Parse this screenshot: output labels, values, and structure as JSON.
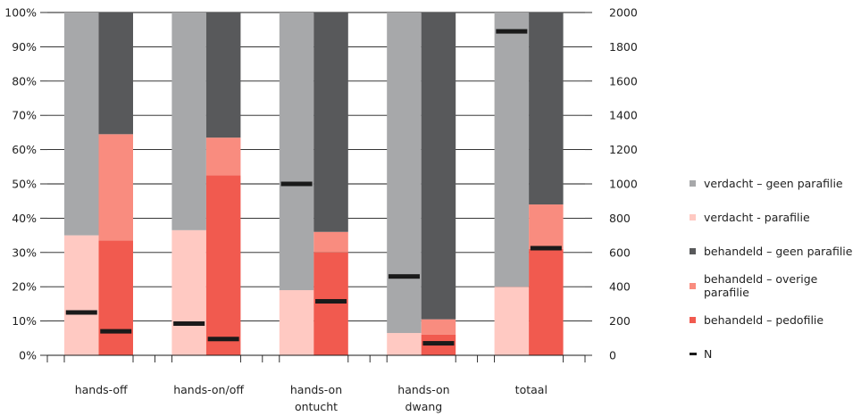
{
  "chart_data": {
    "type": "bar",
    "stacked": true,
    "categories": [
      "hands-off",
      "hands-on/off",
      "hands-on ontucht",
      "hands-on dwang",
      "totaal"
    ],
    "category_labels": [
      [
        "hands-off"
      ],
      [
        "hands-on/off"
      ],
      [
        "hands-on",
        "ontucht"
      ],
      [
        "hands-on",
        "dwang"
      ],
      [
        "totaal"
      ]
    ],
    "groups": [
      {
        "name": "verdacht",
        "segments": [
          {
            "name": "verdacht - parafilie",
            "color": "#ffc9c2",
            "values": [
              35,
              36.5,
              19,
              6.5,
              20
            ]
          },
          {
            "name": "verdacht – geen parafilie",
            "color": "#a7a8aa",
            "values": [
              65,
              63.5,
              81,
              93.5,
              80
            ]
          }
        ]
      },
      {
        "name": "behandeld",
        "segments": [
          {
            "name": "behandeld – pedofilie",
            "color": "#f15a4f",
            "values": [
              33.5,
              52.5,
              30,
              6,
              31
            ]
          },
          {
            "name": "behandeld – overige parafilie",
            "color": "#f98c7f",
            "values": [
              31,
              11,
              6,
              4.5,
              13
            ]
          },
          {
            "name": "behandeld – geen parafilie",
            "color": "#58595b",
            "values": [
              35.5,
              36.5,
              64,
              89.5,
              56
            ]
          }
        ]
      }
    ],
    "n_series": {
      "name": "N",
      "color": "#1a1a1a",
      "verdacht": [
        250,
        185,
        1000,
        460,
        1890
      ],
      "behandeld": [
        140,
        95,
        315,
        70,
        625
      ]
    },
    "y_left": {
      "min": 0,
      "max": 100,
      "ticks": [
        "0%",
        "10%",
        "20%",
        "30%",
        "40%",
        "50%",
        "60%",
        "70%",
        "80%",
        "90%",
        "100%"
      ]
    },
    "y_right": {
      "min": 0,
      "max": 2000,
      "ticks": [
        "0",
        "200",
        "400",
        "600",
        "800",
        "1000",
        "1200",
        "1400",
        "1600",
        "1800",
        "2000"
      ]
    },
    "legend": {
      "position": "right",
      "items": [
        {
          "label": "verdacht – geen parafilie",
          "color": "#a7a8aa",
          "kind": "box"
        },
        {
          "label": "verdacht - parafilie",
          "color": "#ffc9c2",
          "kind": "box"
        },
        {
          "label": "behandeld – geen parafilie",
          "color": "#58595b",
          "kind": "box"
        },
        {
          "label": "behandeld – overige parafilie",
          "color": "#f98c7f",
          "kind": "box"
        },
        {
          "label": "behandeld – pedofilie",
          "color": "#f15a4f",
          "kind": "box"
        },
        {
          "label": "N",
          "color": "#1a1a1a",
          "kind": "line"
        }
      ]
    },
    "grid": true
  }
}
